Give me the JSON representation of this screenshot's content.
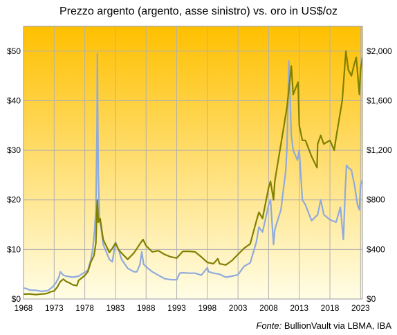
{
  "chart_data": {
    "type": "line",
    "title": "Prezzo argento (argento, asse sinistro) vs. oro in US$/oz",
    "source_label": "Fonte:",
    "source_text": "BullionVault via LBMA, IBA",
    "x_ticks": [
      "1968",
      "1973",
      "1978",
      "1983",
      "1988",
      "1993",
      "1998",
      "2003",
      "2008",
      "2013",
      "2018",
      "2023"
    ],
    "xlim": [
      1968,
      2023.3
    ],
    "y_left": {
      "ticks": [
        "$0",
        "$10",
        "$20",
        "$30",
        "$40",
        "$50"
      ],
      "ylim": [
        0,
        55
      ]
    },
    "y_right": {
      "ticks": [
        "$0",
        "$400",
        "$800",
        "$1,200",
        "$1,600",
        "$2,000"
      ],
      "ylim": [
        0,
        2200
      ]
    },
    "grid": true,
    "background": {
      "top": "#FFC000",
      "bottom": "#FFFDE6"
    },
    "series": [
      {
        "axis": "left",
        "color": "#8FAADC",
        "x": [
          1968,
          1968.5,
          1969,
          1970,
          1971,
          1972,
          1972.8,
          1973.3,
          1973.8,
          1974,
          1974.5,
          1975,
          1976,
          1977,
          1978,
          1978.5,
          1979,
          1979.3,
          1979.6,
          1979.8,
          1980.0,
          1980.05,
          1980.1,
          1980.2,
          1980.4,
          1980.7,
          1981,
          1982,
          1982.5,
          1983,
          1983.5,
          1984,
          1985,
          1986,
          1986.5,
          1987,
          1987.3,
          1987.6,
          1988,
          1989,
          1990,
          1991,
          1992,
          1993,
          1993.5,
          1994,
          1995,
          1996,
          1997,
          1998,
          1998.2,
          1999,
          2000,
          2001,
          2002,
          2003,
          2004,
          2005,
          2006,
          2006.4,
          2007,
          2008,
          2008.3,
          2008.8,
          2009,
          2010,
          2010.8,
          2011.0,
          2011.3,
          2011.7,
          2012,
          2012.7,
          2013,
          2013.5,
          2014,
          2015,
          2016,
          2016.5,
          2017,
          2018,
          2019,
          2019.7,
          2020.2,
          2020.5,
          2020.7,
          2021,
          2021.5,
          2022,
          2022.5,
          2022.8,
          2023,
          2023.3
        ],
        "values": [
          2.2,
          2.1,
          1.8,
          1.75,
          1.55,
          1.7,
          2.5,
          3.3,
          4.5,
          5.5,
          4.8,
          4.6,
          4.4,
          4.6,
          5.4,
          5.8,
          8.0,
          10.0,
          14.0,
          18.0,
          35.0,
          49.5,
          40.0,
          25.0,
          16.0,
          14.0,
          11.0,
          8.0,
          7.5,
          11.5,
          10.0,
          8.0,
          6.2,
          5.5,
          5.5,
          7.0,
          9.5,
          7.0,
          6.5,
          5.5,
          4.8,
          4.1,
          3.9,
          3.9,
          5.2,
          5.3,
          5.2,
          5.2,
          4.8,
          6.3,
          5.5,
          5.2,
          5.0,
          4.4,
          4.6,
          4.9,
          6.6,
          7.3,
          11.5,
          14.5,
          13.5,
          19.0,
          20.0,
          11.0,
          14.0,
          18.0,
          26.0,
          31.0,
          48.0,
          33.0,
          30.0,
          28.0,
          30.0,
          20.0,
          19.0,
          15.8,
          17.0,
          20.0,
          17.0,
          16.0,
          15.5,
          18.5,
          12.0,
          22.0,
          27.0,
          26.5,
          26.0,
          23.0,
          19.0,
          18.0,
          23.0,
          24.0
        ]
      },
      {
        "axis": "right",
        "color": "#808000",
        "x": [
          1968,
          1969,
          1970,
          1971,
          1971.5,
          1972,
          1972.5,
          1973,
          1973.5,
          1974,
          1974.5,
          1975,
          1975.5,
          1976,
          1976.7,
          1977,
          1978,
          1978.5,
          1979,
          1979.5,
          1979.8,
          1980.0,
          1980.05,
          1980.2,
          1980.5,
          1981,
          1982,
          1982.5,
          1983,
          1983.5,
          1984,
          1985,
          1986,
          1987,
          1987.5,
          1988,
          1989,
          1990,
          1991,
          1992,
          1993,
          1994,
          1995,
          1996,
          1997,
          1998,
          1999,
          1999.7,
          2000,
          2001,
          2002,
          2003,
          2004,
          2005,
          2006,
          2006.4,
          2007,
          2008,
          2008.3,
          2008.8,
          2009,
          2010,
          2011,
          2011.7,
          2012,
          2012.8,
          2013,
          2013.5,
          2014,
          2015,
          2015.9,
          2016,
          2016.5,
          2017,
          2018,
          2018.7,
          2019,
          2019.5,
          2020,
          2020.6,
          2021,
          2021.5,
          2022,
          2022.3,
          2022.8,
          2023,
          2023.3
        ],
        "values": [
          39,
          41,
          36,
          41,
          42,
          48,
          60,
          65,
          95,
          140,
          160,
          140,
          130,
          115,
          108,
          150,
          190,
          220,
          300,
          350,
          450,
          750,
          800,
          620,
          650,
          480,
          375,
          410,
          450,
          400,
          370,
          320,
          370,
          445,
          480,
          430,
          380,
          390,
          360,
          340,
          330,
          385,
          385,
          380,
          340,
          295,
          285,
          325,
          285,
          275,
          310,
          360,
          410,
          445,
          630,
          700,
          650,
          900,
          950,
          800,
          950,
          1250,
          1550,
          1880,
          1650,
          1750,
          1400,
          1280,
          1280,
          1150,
          1060,
          1250,
          1320,
          1250,
          1280,
          1200,
          1300,
          1450,
          1600,
          2000,
          1850,
          1800,
          1900,
          1950,
          1650,
          1850,
          1950
        ]
      }
    ]
  }
}
